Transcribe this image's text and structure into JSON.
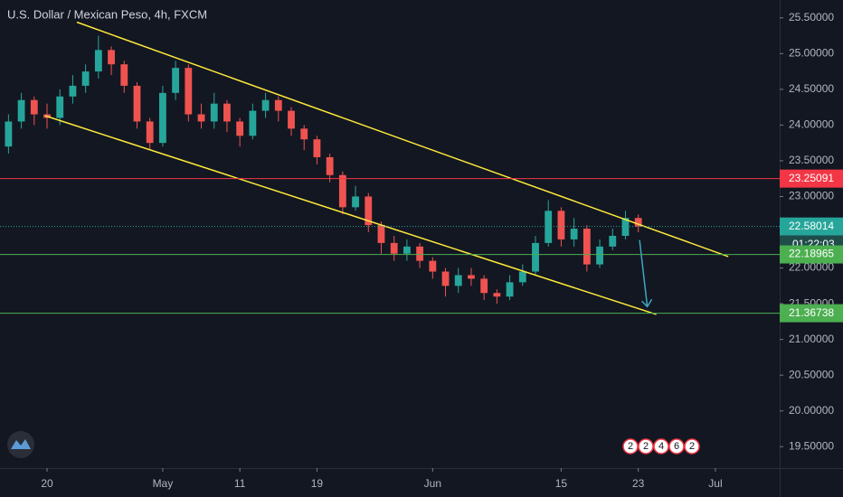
{
  "chart_data": {
    "type": "candlestick",
    "title": "U.S. Dollar / Mexican Peso, 4h, FXCM",
    "up_color": "#26a69a",
    "down_color": "#ef5350",
    "x": [
      -3,
      -2,
      -1,
      0,
      1,
      2,
      3,
      4,
      5,
      6,
      7,
      8,
      9,
      10,
      11,
      12,
      13,
      14,
      15,
      16,
      17,
      18,
      19,
      20,
      21,
      22,
      23,
      24,
      25,
      26,
      27,
      28,
      29,
      30,
      31,
      32,
      33,
      34,
      35,
      36,
      37,
      38,
      39,
      40,
      41,
      42,
      43,
      44,
      45,
      46
    ],
    "open": [
      23.7,
      24.05,
      24.35,
      24.15,
      24.1,
      24.4,
      24.55,
      24.75,
      25.05,
      24.85,
      24.55,
      24.05,
      23.75,
      24.45,
      24.8,
      24.15,
      24.05,
      24.3,
      24.05,
      23.85,
      24.2,
      24.35,
      24.2,
      23.95,
      23.8,
      23.55,
      23.3,
      22.85,
      23.0,
      22.6,
      22.35,
      22.2,
      22.3,
      22.1,
      21.95,
      21.75,
      21.9,
      21.85,
      21.65,
      21.6,
      21.8,
      21.95,
      22.35,
      22.8,
      22.4,
      22.55,
      22.05,
      22.3,
      22.45,
      22.7
    ],
    "high": [
      24.15,
      24.45,
      24.4,
      24.3,
      24.5,
      24.7,
      24.85,
      25.25,
      25.1,
      24.9,
      24.6,
      24.1,
      24.55,
      24.9,
      24.85,
      24.3,
      24.45,
      24.35,
      24.1,
      24.3,
      24.45,
      24.4,
      24.25,
      24.0,
      23.85,
      23.6,
      23.35,
      23.15,
      23.05,
      22.65,
      22.45,
      22.4,
      22.35,
      22.15,
      22.0,
      22.0,
      22.0,
      21.9,
      21.7,
      21.9,
      22.05,
      22.45,
      22.95,
      22.85,
      22.7,
      22.6,
      22.4,
      22.55,
      22.8,
      22.75
    ],
    "low": [
      23.6,
      23.95,
      24.0,
      23.95,
      24.0,
      24.3,
      24.45,
      24.65,
      24.7,
      24.45,
      23.95,
      23.65,
      23.7,
      24.35,
      24.05,
      23.95,
      23.95,
      23.9,
      23.7,
      23.8,
      24.1,
      24.05,
      23.85,
      23.65,
      23.45,
      23.2,
      22.75,
      22.8,
      22.5,
      22.2,
      22.1,
      22.1,
      22.0,
      21.85,
      21.6,
      21.65,
      21.75,
      21.55,
      21.5,
      21.55,
      21.75,
      21.9,
      22.3,
      22.3,
      22.3,
      21.95,
      22.0,
      22.25,
      22.4,
      22.5
    ],
    "close": [
      24.05,
      24.35,
      24.15,
      24.1,
      24.4,
      24.55,
      24.75,
      25.05,
      24.85,
      24.55,
      24.05,
      23.75,
      24.45,
      24.8,
      24.15,
      24.05,
      24.3,
      24.05,
      23.85,
      24.2,
      24.35,
      24.2,
      23.95,
      23.8,
      23.55,
      23.3,
      22.85,
      23.0,
      22.6,
      22.35,
      22.2,
      22.3,
      22.1,
      21.95,
      21.75,
      21.9,
      21.85,
      21.65,
      21.6,
      21.8,
      21.95,
      22.35,
      22.8,
      22.4,
      22.55,
      22.05,
      22.3,
      22.45,
      22.7,
      22.58
    ],
    "xlim": [
      -3.66,
      57.0
    ],
    "ylim": [
      19.2,
      25.75
    ],
    "xticks": [
      {
        "value": 0,
        "label": "20"
      },
      {
        "value": 9,
        "label": "May"
      },
      {
        "value": 15,
        "label": "11"
      },
      {
        "value": 21,
        "label": "19"
      },
      {
        "value": 30,
        "label": "Jun"
      },
      {
        "value": 40,
        "label": "15"
      },
      {
        "value": 46,
        "label": "23"
      },
      {
        "value": 52,
        "label": "Jul"
      }
    ],
    "yticks": [
      {
        "value": 25.5,
        "label": "25.50000"
      },
      {
        "value": 25.0,
        "label": "25.00000"
      },
      {
        "value": 24.5,
        "label": "24.50000"
      },
      {
        "value": 24.0,
        "label": "24.00000"
      },
      {
        "value": 23.5,
        "label": "23.50000"
      },
      {
        "value": 23.0,
        "label": "23.00000"
      },
      {
        "value": 22.5,
        "label": "22.50000"
      },
      {
        "value": 22.0,
        "label": "22.00000"
      },
      {
        "value": 21.5,
        "label": "21.50000"
      },
      {
        "value": 21.0,
        "label": "21.00000"
      },
      {
        "value": 20.5,
        "label": "20.50000"
      },
      {
        "value": 20.0,
        "label": "20.00000"
      },
      {
        "value": 19.5,
        "label": "19.50000"
      }
    ],
    "price_lines": [
      {
        "value": 23.25091,
        "color": "#f23645"
      },
      {
        "value": 22.58014,
        "color": "#26a69a",
        "dotted": true,
        "countdown": "01:22:03"
      },
      {
        "value": 22.18965,
        "color": "#4caf50"
      },
      {
        "value": 21.36738,
        "color": "#4caf50"
      }
    ],
    "trend_lines": [
      {
        "color": "#ffeb3b",
        "x": [
          2.32,
          53.0
        ],
        "y": [
          25.44,
          22.16
        ]
      },
      {
        "color": "#ffeb3b",
        "x": [
          -0.14,
          47.4
        ],
        "y": [
          24.13,
          21.35
        ]
      }
    ],
    "arrow": {
      "color": "#3ca7c4",
      "x": [
        46.1,
        46.7
      ],
      "y": [
        22.39,
        21.46
      ]
    },
    "event_badges": [
      "2",
      "2",
      "4",
      "6",
      "2"
    ]
  }
}
